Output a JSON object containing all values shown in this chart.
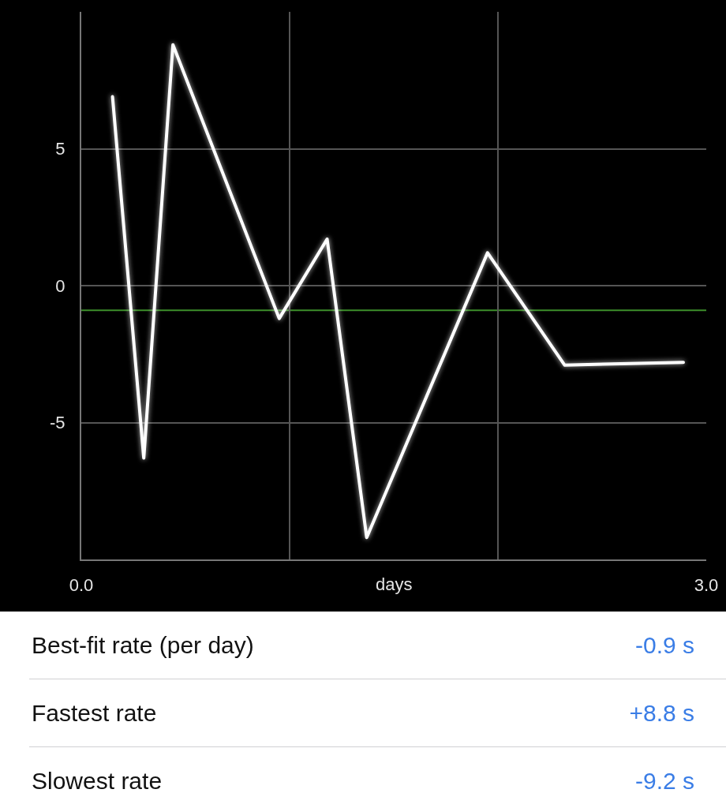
{
  "chart_data": {
    "type": "line",
    "x": [
      0.15,
      0.3,
      0.44,
      0.95,
      1.18,
      1.37,
      1.95,
      2.32,
      2.89
    ],
    "values": [
      6.9,
      -6.3,
      8.8,
      -1.2,
      1.7,
      -9.2,
      1.2,
      -2.9,
      -2.8
    ],
    "color": "#ffffff",
    "line_style": "solid",
    "xlabel": "days",
    "xlim": [
      0,
      3
    ],
    "xticks": [
      {
        "value": 0,
        "label": "0.0"
      },
      {
        "value": 1,
        "label": null
      },
      {
        "value": 2,
        "label": null
      },
      {
        "value": 3,
        "label": "3.0"
      }
    ],
    "ylim": [
      -10,
      10
    ],
    "yticks": [
      -5,
      0,
      5
    ],
    "grid": true,
    "ref_lines": [
      {
        "axis": "y",
        "value": -0.9,
        "color": "#3d8f2b"
      }
    ],
    "annotations": [
      "Best-fit rate (per day)",
      "-0.9 s",
      "Fastest rate",
      "+8.8 s",
      "Slowest rate",
      "-9.2 s"
    ]
  }
}
